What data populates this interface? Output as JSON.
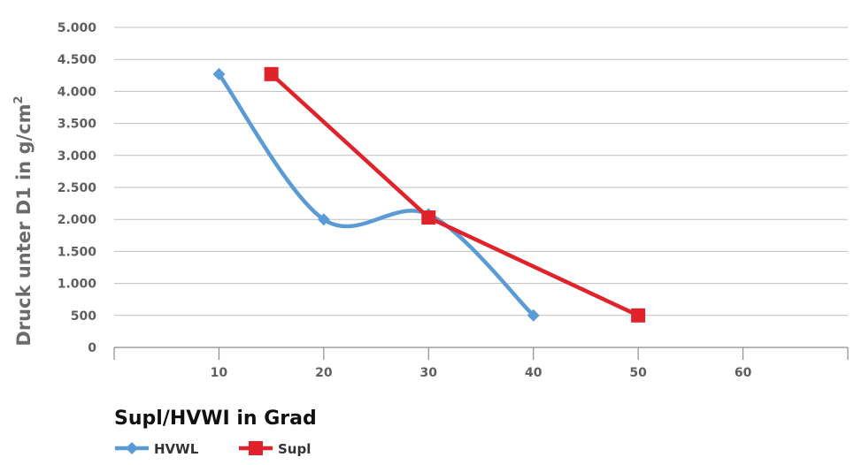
{
  "chart_data": {
    "type": "line",
    "xlabel": "Supl/HVWI in Grad",
    "ylabel": "Druck unter D1 in g/cm",
    "ylabel_sup": "2",
    "xlim": [
      0,
      70
    ],
    "ylim": [
      0,
      5000
    ],
    "x_ticks": [
      10,
      20,
      30,
      40,
      50,
      60
    ],
    "x_tick_labels": [
      "10",
      "20",
      "30",
      "40",
      "50",
      "60"
    ],
    "y_ticks": [
      0,
      500,
      1000,
      1500,
      2000,
      2500,
      3000,
      3500,
      4000,
      4500,
      5000
    ],
    "y_tick_labels": [
      "0",
      "500",
      "1.000",
      "1.500",
      "2.000",
      "2.500",
      "3.000",
      "3.500",
      "4.000",
      "4.500",
      "5.000"
    ],
    "grid": "horizontal",
    "legend_position": "bottom-left",
    "series": [
      {
        "name": "HVWL",
        "color": "#5b9bd5",
        "marker": "diamond",
        "smooth": true,
        "points": [
          [
            10,
            4270
          ],
          [
            20,
            2000
          ],
          [
            30,
            2080
          ],
          [
            40,
            500
          ]
        ]
      },
      {
        "name": "Supl",
        "color": "#e0232b",
        "marker": "square",
        "smooth": false,
        "points": [
          [
            15,
            4270
          ],
          [
            30,
            2030
          ],
          [
            50,
            500
          ]
        ]
      }
    ]
  }
}
